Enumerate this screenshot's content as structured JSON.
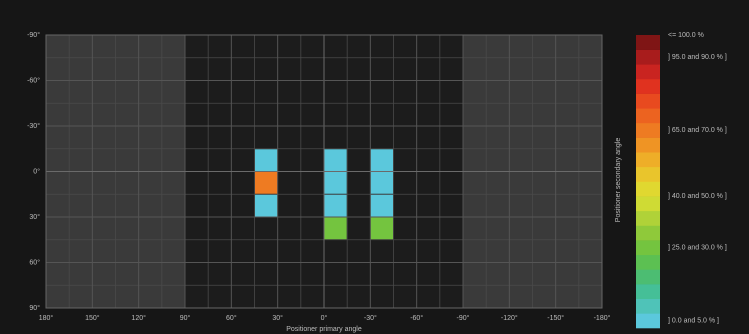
{
  "chart_data": {
    "type": "heatmap",
    "x_label": "Positioner primary angle",
    "y_label": "Positioner secondary angle",
    "xlim": [
      180,
      -180
    ],
    "xticks": [
      {
        "value": 180,
        "label": "180°"
      },
      {
        "value": 150,
        "label": "150°"
      },
      {
        "value": 120,
        "label": "120°"
      },
      {
        "value": 90,
        "label": "90°"
      },
      {
        "value": 60,
        "label": "60°"
      },
      {
        "value": 30,
        "label": "30°"
      },
      {
        "value": 0,
        "label": "0°"
      },
      {
        "value": -30,
        "label": "-30°"
      },
      {
        "value": -60,
        "label": "-60°"
      },
      {
        "value": -90,
        "label": "-90°"
      },
      {
        "value": -120,
        "label": "-120°"
      },
      {
        "value": -150,
        "label": "-150°"
      },
      {
        "value": -180,
        "label": "-180°"
      }
    ],
    "ylim": [
      -90,
      90
    ],
    "yticks": [
      {
        "value": -90,
        "label": "-90°"
      },
      {
        "value": -60,
        "label": "-60°"
      },
      {
        "value": -30,
        "label": "-30°"
      },
      {
        "value": 0,
        "label": "0°"
      },
      {
        "value": 30,
        "label": "30°"
      },
      {
        "value": 60,
        "label": "60°"
      },
      {
        "value": 90,
        "label": "90°"
      }
    ],
    "cells": {
      "x": [
        37.5,
        37.5,
        37.5,
        -7.5,
        -7.5,
        -7.5,
        -7.5,
        -37.5,
        -37.5,
        -37.5,
        -37.5
      ],
      "y": [
        -7.5,
        7.5,
        22.5,
        -7.5,
        7.5,
        22.5,
        37.5,
        -7.5,
        7.5,
        22.5,
        37.5
      ],
      "values": [
        2.5,
        67.5,
        2.5,
        2.5,
        2.5,
        2.5,
        27.5,
        2.5,
        2.5,
        2.5,
        27.5
      ]
    },
    "clim": [
      0,
      100
    ],
    "colorscale": [
      "#5bc8dc",
      "#4fc3b8",
      "#45bf97",
      "#4cbd72",
      "#5cc052",
      "#74c43f",
      "#8fc93a",
      "#b0d238",
      "#cfdb34",
      "#e0d830",
      "#e9c52c",
      "#eeae28",
      "#ef9424",
      "#ee7b22",
      "#ec6320",
      "#e84a1f",
      "#e0321f",
      "#c92420",
      "#a81c1c",
      "#7f1515"
    ],
    "colorbar_ticks": [
      {
        "value": 100,
        "label": "<= 100.0 %"
      },
      {
        "value": 92.5,
        "label": "] 95.0 and 90.0 % ]"
      },
      {
        "value": 67.5,
        "label": "] 65.0 and 70.0 % ]"
      },
      {
        "value": 45,
        "label": "] 40.0 and 50.0 % ]"
      },
      {
        "value": 27.5,
        "label": "] 25.0 and 30.0 % ]"
      },
      {
        "value": 2.5,
        "label": "] 0.0 and 5.0 % ]"
      }
    ]
  }
}
